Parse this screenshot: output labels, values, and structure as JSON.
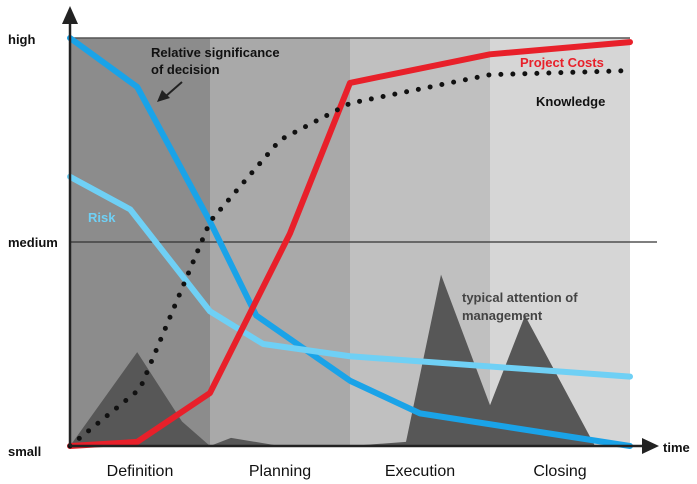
{
  "chart_data": {
    "type": "line",
    "title": "",
    "xlabel": "time",
    "ylabel": "",
    "x_categories": [
      "Definition",
      "Planning",
      "Execution",
      "Closing"
    ],
    "y_ticks": [
      "high",
      "medium",
      "small"
    ],
    "ylim": [
      0,
      100
    ],
    "xlim": [
      0,
      4
    ],
    "grid": "horizontal line at medium",
    "series": [
      {
        "name": "Relative significance of decision",
        "color": "#1aa3e8",
        "style": "solid",
        "x": [
          0,
          0.48,
          1.0,
          1.33,
          2.0,
          2.5,
          4.0
        ],
        "y": [
          100,
          88,
          55,
          32,
          16,
          8,
          0
        ]
      },
      {
        "name": "Risk",
        "color": "#6fd0f5",
        "style": "solid",
        "x": [
          0,
          0.43,
          1.0,
          1.38,
          2.0,
          4.0
        ],
        "y": [
          66,
          58,
          33,
          25,
          22,
          17
        ]
      },
      {
        "name": "Project Costs",
        "color": "#e8202a",
        "style": "solid",
        "x": [
          0,
          0.48,
          1.0,
          1.57,
          2.0,
          3.0,
          4.0
        ],
        "y": [
          0,
          1,
          13,
          52,
          89,
          96,
          99
        ]
      },
      {
        "name": "Knowledge",
        "color": "#111111",
        "style": "dotted",
        "x": [
          0,
          0.5,
          1.0,
          1.5,
          2.0,
          3.0,
          4.0
        ],
        "y": [
          0,
          14,
          55,
          75,
          84,
          91,
          92
        ]
      }
    ],
    "area": {
      "name": "typical attention of management",
      "color": "#575757",
      "x": [
        0,
        0.48,
        0.8,
        1.0,
        1.15,
        1.5,
        2.0,
        2.4,
        2.65,
        3.0,
        3.25,
        3.75,
        4.0
      ],
      "y": [
        0,
        23,
        6,
        0,
        2,
        0,
        0,
        1,
        42,
        10,
        32,
        0,
        0
      ]
    },
    "annotations": {
      "decision": [
        "Relative significance",
        "of decision"
      ],
      "risk": "Risk",
      "costs": "Project Costs",
      "knowledge": "Knowledge",
      "attention": [
        "typical attention of",
        "management"
      ]
    },
    "phase_shades": [
      "#8c8c8c",
      "#a9a9a9",
      "#c0c0c0",
      "#d6d6d6"
    ]
  }
}
